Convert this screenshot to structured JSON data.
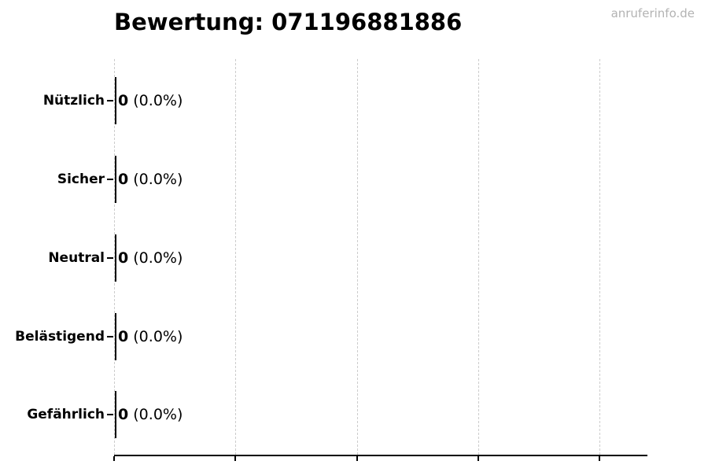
{
  "chart_data": {
    "type": "bar",
    "orientation": "horizontal",
    "title": "Bewertung: 071196881886",
    "categories": [
      "Nützlich",
      "Sicher",
      "Neutral",
      "Belästigend",
      "Gefährlich"
    ],
    "values": [
      0,
      0,
      0,
      0,
      0
    ],
    "counts": [
      "0",
      "0",
      "0",
      "0",
      "0"
    ],
    "percents": [
      "0.0%",
      "0.0%",
      "0.0%",
      "0.0%",
      "0.0%"
    ],
    "value_labels": [
      "0 (0.0%)",
      "0 (0.0%)",
      "0 (0.0%)",
      "0 (0.0%)",
      "0 (0.0%)"
    ],
    "xlabel": "",
    "ylabel": "",
    "xlim": [
      0,
      1
    ],
    "x_tick_labels_visible": false,
    "grid": "vertical-dashed",
    "legend": "none"
  },
  "watermark": {
    "text": "anruferinfo.de"
  },
  "colors": {
    "background": "#ffffff",
    "text": "#000000",
    "grid": "#cccccc",
    "axis": "#000000",
    "bar_edge": "#000000",
    "watermark": "#b3b3b3"
  }
}
